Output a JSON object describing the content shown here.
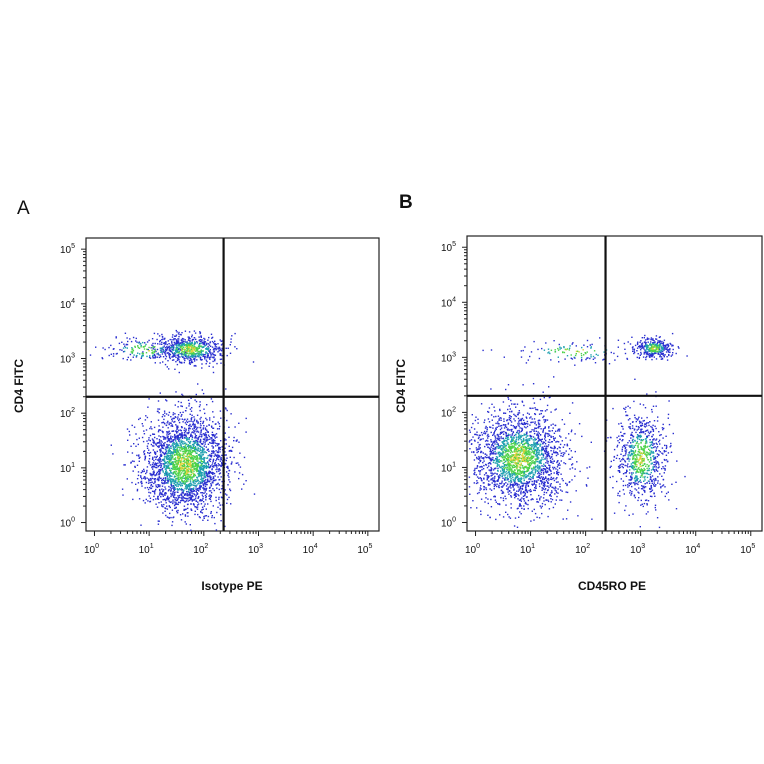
{
  "colors": {
    "density_low": "#2a2fd0",
    "density_mid": "#1fa0b0",
    "density_high": "#4dd24a",
    "density_peak": "#e0d23a",
    "gate": "#111111"
  },
  "chart_data": [
    {
      "type": "scatter",
      "panel_label": "A",
      "xlabel": "Isotype PE",
      "ylabel": "CD4 FITC",
      "xscale": "log",
      "yscale": "log",
      "xlim": [
        0.7,
        160000
      ],
      "ylim": [
        0.7,
        160000
      ],
      "x_ticks": [
        {
          "base": "10",
          "exp": "0"
        },
        {
          "base": "10",
          "exp": "1"
        },
        {
          "base": "10",
          "exp": "2"
        },
        {
          "base": "10",
          "exp": "3"
        },
        {
          "base": "10",
          "exp": "4"
        },
        {
          "base": "10",
          "exp": "5"
        }
      ],
      "y_ticks": [
        {
          "base": "10",
          "exp": "0"
        },
        {
          "base": "10",
          "exp": "1"
        },
        {
          "base": "10",
          "exp": "2"
        },
        {
          "base": "10",
          "exp": "3"
        },
        {
          "base": "10",
          "exp": "4"
        },
        {
          "base": "10",
          "exp": "5"
        }
      ],
      "quadrant_gate": {
        "x": 230,
        "y": 200
      },
      "populations": [
        {
          "description_free": true,
          "center": [
            45,
            12
          ],
          "spread_decades": [
            0.38,
            0.45
          ],
          "count": 2600
        },
        {
          "description_free": true,
          "center": [
            55,
            1500
          ],
          "spread_decades": [
            0.32,
            0.13
          ],
          "count": 700
        },
        {
          "description_free": true,
          "center": [
            8,
            1500
          ],
          "spread_decades": [
            0.35,
            0.12
          ],
          "count": 150
        }
      ]
    },
    {
      "type": "scatter",
      "panel_label": "B",
      "xlabel": "CD45RO PE",
      "ylabel": "CD4 FITC",
      "xscale": "log",
      "yscale": "log",
      "xlim": [
        0.7,
        160000
      ],
      "ylim": [
        0.7,
        160000
      ],
      "x_ticks": [
        {
          "base": "10",
          "exp": "0"
        },
        {
          "base": "10",
          "exp": "1"
        },
        {
          "base": "10",
          "exp": "2"
        },
        {
          "base": "10",
          "exp": "3"
        },
        {
          "base": "10",
          "exp": "4"
        },
        {
          "base": "10",
          "exp": "5"
        }
      ],
      "y_ticks": [
        {
          "base": "10",
          "exp": "0"
        },
        {
          "base": "10",
          "exp": "1"
        },
        {
          "base": "10",
          "exp": "2"
        },
        {
          "base": "10",
          "exp": "3"
        },
        {
          "base": "10",
          "exp": "4"
        },
        {
          "base": "10",
          "exp": "5"
        }
      ],
      "quadrant_gate": {
        "x": 230,
        "y": 200
      },
      "populations": [
        {
          "description_free": true,
          "center": [
            6,
            15
          ],
          "spread_decades": [
            0.42,
            0.42
          ],
          "count": 2200
        },
        {
          "description_free": true,
          "center": [
            1000,
            15
          ],
          "spread_decades": [
            0.22,
            0.42
          ],
          "count": 800
        },
        {
          "description_free": true,
          "center": [
            1700,
            1500
          ],
          "spread_decades": [
            0.16,
            0.09
          ],
          "count": 350
        },
        {
          "description_free": true,
          "center": [
            60,
            1300
          ],
          "spread_decades": [
            0.55,
            0.1
          ],
          "count": 120
        }
      ]
    }
  ]
}
